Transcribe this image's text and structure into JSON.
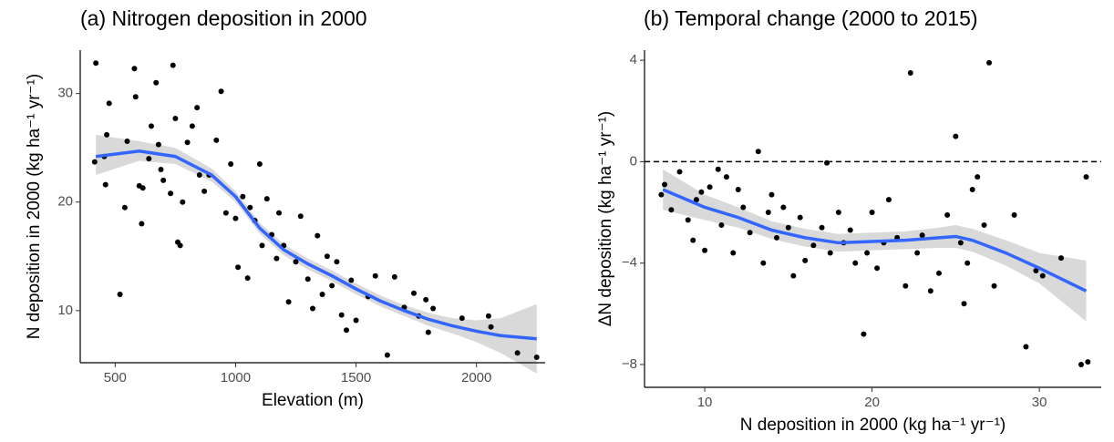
{
  "chart_data": [
    {
      "type": "scatter",
      "title": "(a) Nitrogen deposition in 2000",
      "x_label": "Elevation (m)",
      "y_label": "N deposition in 2000 (kg ha⁻¹ yr⁻¹)",
      "xlim": [
        355,
        2285
      ],
      "ylim": [
        5.2,
        34.0
      ],
      "xticks": [
        500,
        1000,
        1500,
        2000
      ],
      "yticks": [
        10,
        20,
        30
      ],
      "point_color": "#000000",
      "x": [
        420,
        415,
        455,
        460,
        465,
        475,
        520,
        540,
        550,
        580,
        585,
        600,
        610,
        615,
        640,
        650,
        670,
        680,
        690,
        700,
        730,
        740,
        750,
        760,
        770,
        780,
        800,
        820,
        840,
        850,
        870,
        890,
        920,
        940,
        960,
        980,
        1000,
        1010,
        1030,
        1050,
        1060,
        1080,
        1100,
        1110,
        1130,
        1150,
        1170,
        1180,
        1200,
        1220,
        1250,
        1270,
        1300,
        1320,
        1340,
        1360,
        1380,
        1400,
        1420,
        1440,
        1460,
        1480,
        1500,
        1550,
        1580,
        1630,
        1660,
        1700,
        1740,
        1760,
        1790,
        1800,
        1820,
        1940,
        2050,
        2060,
        2170,
        2250
      ],
      "y": [
        32.8,
        23.7,
        24.2,
        21.6,
        26.2,
        29.1,
        11.5,
        19.5,
        25.6,
        32.3,
        29.7,
        21.5,
        18,
        21.3,
        24,
        27,
        31,
        25.3,
        23,
        22,
        20.8,
        32.6,
        27.7,
        16.3,
        16,
        20,
        25.5,
        27,
        28.7,
        22.5,
        21,
        22.5,
        25.7,
        30.2,
        19,
        23.5,
        18.5,
        14,
        20.5,
        13,
        19.5,
        18.3,
        23.5,
        16,
        20.3,
        17,
        14.8,
        19,
        16,
        10.8,
        14.5,
        18.7,
        12.9,
        10.2,
        16.9,
        11.5,
        15,
        12.3,
        14.5,
        9.6,
        8.2,
        12.8,
        9.1,
        11.3,
        13.2,
        5.9,
        13.1,
        10.3,
        11.6,
        9.5,
        11,
        8,
        10.2,
        9.3,
        9.5,
        8.5,
        6.1,
        5.7
      ],
      "smooth": {
        "color": "#3366ff",
        "band_color": "#d9d9d9",
        "x": [
          420,
          600,
          750,
          900,
          1000,
          1100,
          1200,
          1300,
          1400,
          1500,
          1600,
          1700,
          1800,
          1900,
          2000,
          2100,
          2250
        ],
        "y": [
          24.2,
          24.7,
          24.2,
          22.5,
          20.5,
          17.6,
          15.6,
          14.3,
          13.2,
          12.0,
          10.9,
          10.0,
          9.2,
          8.6,
          8.1,
          7.7,
          7.4
        ],
        "lower": [
          22.5,
          23.8,
          23.5,
          21.9,
          20.0,
          17.1,
          15.1,
          13.8,
          12.7,
          11.5,
          10.4,
          9.5,
          8.6,
          7.9,
          7.1,
          6.1,
          4.2
        ],
        "upper": [
          26.2,
          25.6,
          25.0,
          23.1,
          21.0,
          18.1,
          16.1,
          14.8,
          13.7,
          12.5,
          11.4,
          10.5,
          9.8,
          9.3,
          9.1,
          9.3,
          10.6
        ]
      }
    },
    {
      "type": "scatter",
      "title": "(b) Temporal change (2000 to 2015)",
      "x_label": "N deposition in 2000 (kg ha⁻¹ yr⁻¹)",
      "y_label": "ΔN deposition (kg ha⁻¹ yr⁻¹)",
      "xlim": [
        6.4,
        33.7
      ],
      "ylim": [
        -8.9,
        4.4
      ],
      "xticks": [
        10,
        20,
        30
      ],
      "yticks": [
        4,
        0,
        {
          "value": -4,
          "label": "−4"
        },
        {
          "value": -8,
          "label": "−8"
        }
      ],
      "hline": 0,
      "point_color": "#000000",
      "x": [
        7.4,
        7.6,
        8.0,
        8.5,
        9,
        9.3,
        9.5,
        9.8,
        10,
        10.3,
        10.8,
        11,
        11.3,
        11.7,
        12,
        12.3,
        12.7,
        13.2,
        13.5,
        13.8,
        14,
        14.3,
        14.7,
        15,
        15.3,
        15.7,
        16,
        16.5,
        17,
        17.3,
        17.5,
        18,
        18.3,
        18.7,
        19,
        19.5,
        19.7,
        20,
        20.3,
        20.7,
        21,
        21.5,
        22,
        22.3,
        22.7,
        23,
        23.5,
        24,
        24.5,
        25,
        25.3,
        25.5,
        25.7,
        26,
        26.3,
        26.7,
        27.0,
        27.3,
        28.5,
        29.2,
        29.8,
        30.2,
        31.3,
        32.5,
        32.8,
        32.9
      ],
      "y": [
        -1.3,
        -0.9,
        -1.9,
        -0.4,
        -2.3,
        -3.1,
        -1.5,
        -1.2,
        -3.5,
        -1.0,
        -0.3,
        -2.5,
        -0.6,
        -3.6,
        -1.1,
        -1.8,
        -2.8,
        0.4,
        -4.0,
        -2.0,
        -1.3,
        -3.0,
        -1.8,
        -2.6,
        -4.5,
        -2.2,
        -3.9,
        -3.3,
        -2.6,
        -0.05,
        -3.6,
        -2.0,
        -3.2,
        -2.7,
        -4.0,
        -6.8,
        -3.6,
        -2.0,
        -4.2,
        -3.2,
        -1.5,
        -3.0,
        -4.9,
        3.5,
        -3.6,
        -2.9,
        -5.1,
        -4.4,
        -2.1,
        1.0,
        -3.2,
        -5.6,
        -4.0,
        -1.1,
        -0.6,
        -2.5,
        3.9,
        -4.9,
        -2.1,
        -7.3,
        -4.3,
        -4.5,
        -3.8,
        -8.0,
        -0.6,
        -7.9
      ],
      "smooth": {
        "color": "#3366ff",
        "band_color": "#d9d9d9",
        "x": [
          7.5,
          10,
          12,
          14,
          16,
          18,
          20,
          22,
          24,
          25,
          26,
          28,
          30,
          32.8
        ],
        "y": [
          -1.1,
          -1.8,
          -2.2,
          -2.7,
          -3.0,
          -3.2,
          -3.15,
          -3.1,
          -3.0,
          -2.95,
          -3.1,
          -3.6,
          -4.2,
          -5.1
        ],
        "lower": [
          -1.9,
          -2.3,
          -2.6,
          -3.05,
          -3.35,
          -3.55,
          -3.5,
          -3.45,
          -3.4,
          -3.4,
          -3.55,
          -4.1,
          -4.8,
          -6.3
        ],
        "upper": [
          -0.3,
          -1.3,
          -1.8,
          -2.35,
          -2.65,
          -2.85,
          -2.8,
          -2.75,
          -2.6,
          -2.5,
          -2.65,
          -3.1,
          -3.6,
          -3.9
        ]
      }
    }
  ]
}
